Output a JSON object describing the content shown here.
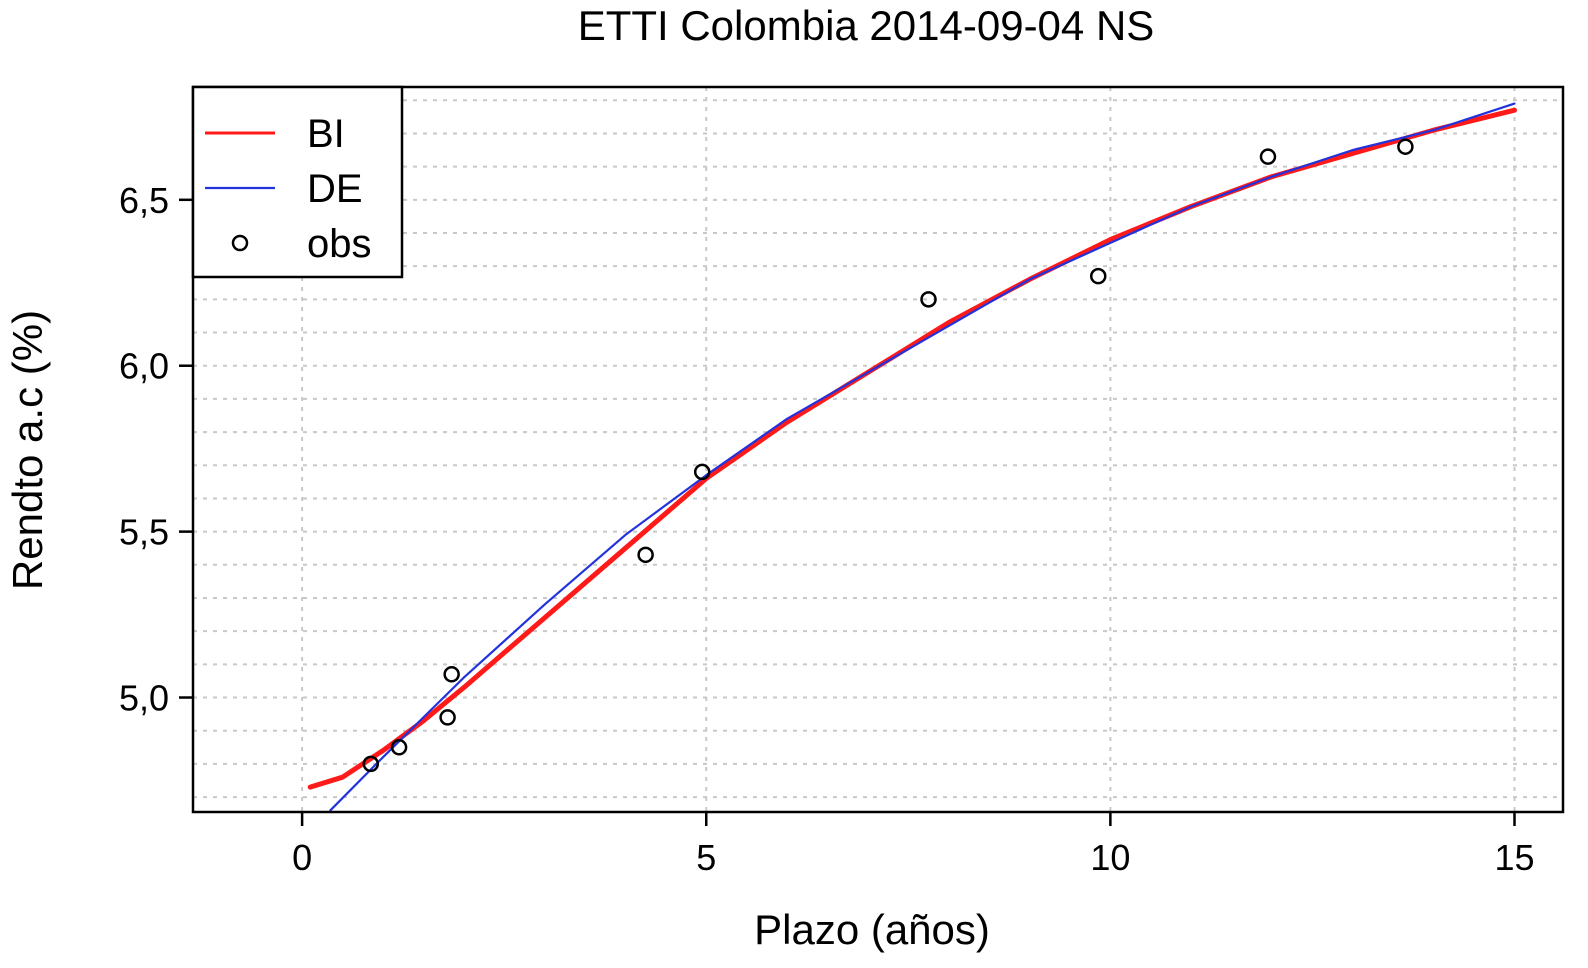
{
  "chart_data": {
    "type": "line",
    "title": "ETTI Colombia 2014-09-04 NS",
    "xlabel": "Plazo (años)",
    "ylabel": "Rendto a.c (%)",
    "xlim": [
      -1.35,
      15.6
    ],
    "ylim": [
      4.655,
      6.84
    ],
    "x_ticks": [
      0,
      5,
      10,
      15
    ],
    "x_tick_labels": [
      "0",
      "5",
      "10",
      "15"
    ],
    "y_ticks": [
      5.0,
      5.5,
      6.0,
      6.5
    ],
    "y_tick_labels": [
      "5,0",
      "5,5",
      "6,0",
      "6,5"
    ],
    "grid": true,
    "legend_position": "top-left",
    "series": [
      {
        "name": "BI",
        "color": "#ff1a1a",
        "style": "line",
        "x": [
          0.1,
          0.5,
          1.0,
          1.5,
          2.0,
          3.0,
          4.0,
          5.0,
          6.0,
          7.0,
          8.0,
          9.0,
          10.0,
          11.0,
          12.0,
          13.0,
          14.0,
          15.0
        ],
        "y": [
          4.73,
          4.76,
          4.84,
          4.93,
          5.03,
          5.24,
          5.45,
          5.66,
          5.83,
          5.98,
          6.13,
          6.26,
          6.38,
          6.48,
          6.57,
          6.64,
          6.71,
          6.77
        ]
      },
      {
        "name": "DE",
        "color": "#2233dd",
        "style": "line",
        "x": [
          0.35,
          1.0,
          1.5,
          2.0,
          3.0,
          4.0,
          5.0,
          6.0,
          7.0,
          8.0,
          9.0,
          10.0,
          11.0,
          12.0,
          13.0,
          14.0,
          15.0
        ],
        "y": [
          4.66,
          4.82,
          4.94,
          5.06,
          5.28,
          5.49,
          5.67,
          5.84,
          5.98,
          6.12,
          6.26,
          6.37,
          6.48,
          6.57,
          6.65,
          6.71,
          6.79
        ]
      },
      {
        "name": "obs",
        "color": "#000000",
        "style": "points",
        "x": [
          0.85,
          1.2,
          1.85,
          1.8,
          4.25,
          4.95,
          7.75,
          9.85,
          11.95,
          13.65
        ],
        "y": [
          4.8,
          4.85,
          5.07,
          4.94,
          5.43,
          5.68,
          6.2,
          6.27,
          6.63,
          6.66
        ]
      }
    ]
  }
}
